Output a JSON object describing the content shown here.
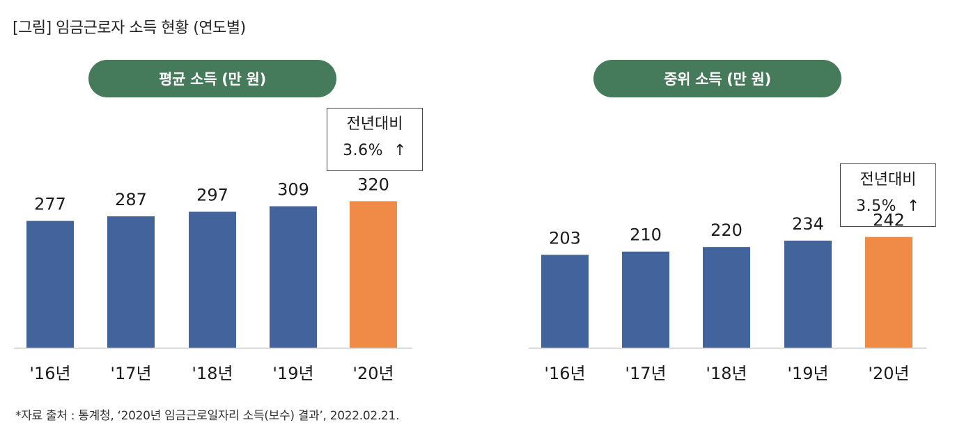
{
  "figure_title": "[그림] 임금근로자 소득 현황 (연도별)",
  "source_note": "*자료 출처 : 통계청, ‘2020년 임금근로일자리 소득(보수) 결과’, 2022.02.21.",
  "colors": {
    "pill": "#457a5b",
    "bar_default": "#43639d",
    "bar_highlight": "#f08a47",
    "baseline": "#c8c8c8"
  },
  "chart_data": [
    {
      "type": "bar",
      "title": "평균 소득 (만 원)",
      "categories": [
        "'16년",
        "'17년",
        "'18년",
        "'19년",
        "'20년"
      ],
      "values": [
        277,
        287,
        297,
        309,
        320
      ],
      "highlight_index": 4,
      "callout": {
        "line1": "전년대비",
        "line2": "3.6%",
        "arrow": "up-arrow-icon"
      }
    },
    {
      "type": "bar",
      "title": "중위 소득 (만 원)",
      "categories": [
        "'16년",
        "'17년",
        "'18년",
        "'19년",
        "'20년"
      ],
      "values": [
        203,
        210,
        220,
        234,
        242
      ],
      "highlight_index": 4,
      "callout": {
        "line1": "전년대비",
        "line2": "3.5%",
        "arrow": "up-arrow-icon"
      }
    }
  ]
}
